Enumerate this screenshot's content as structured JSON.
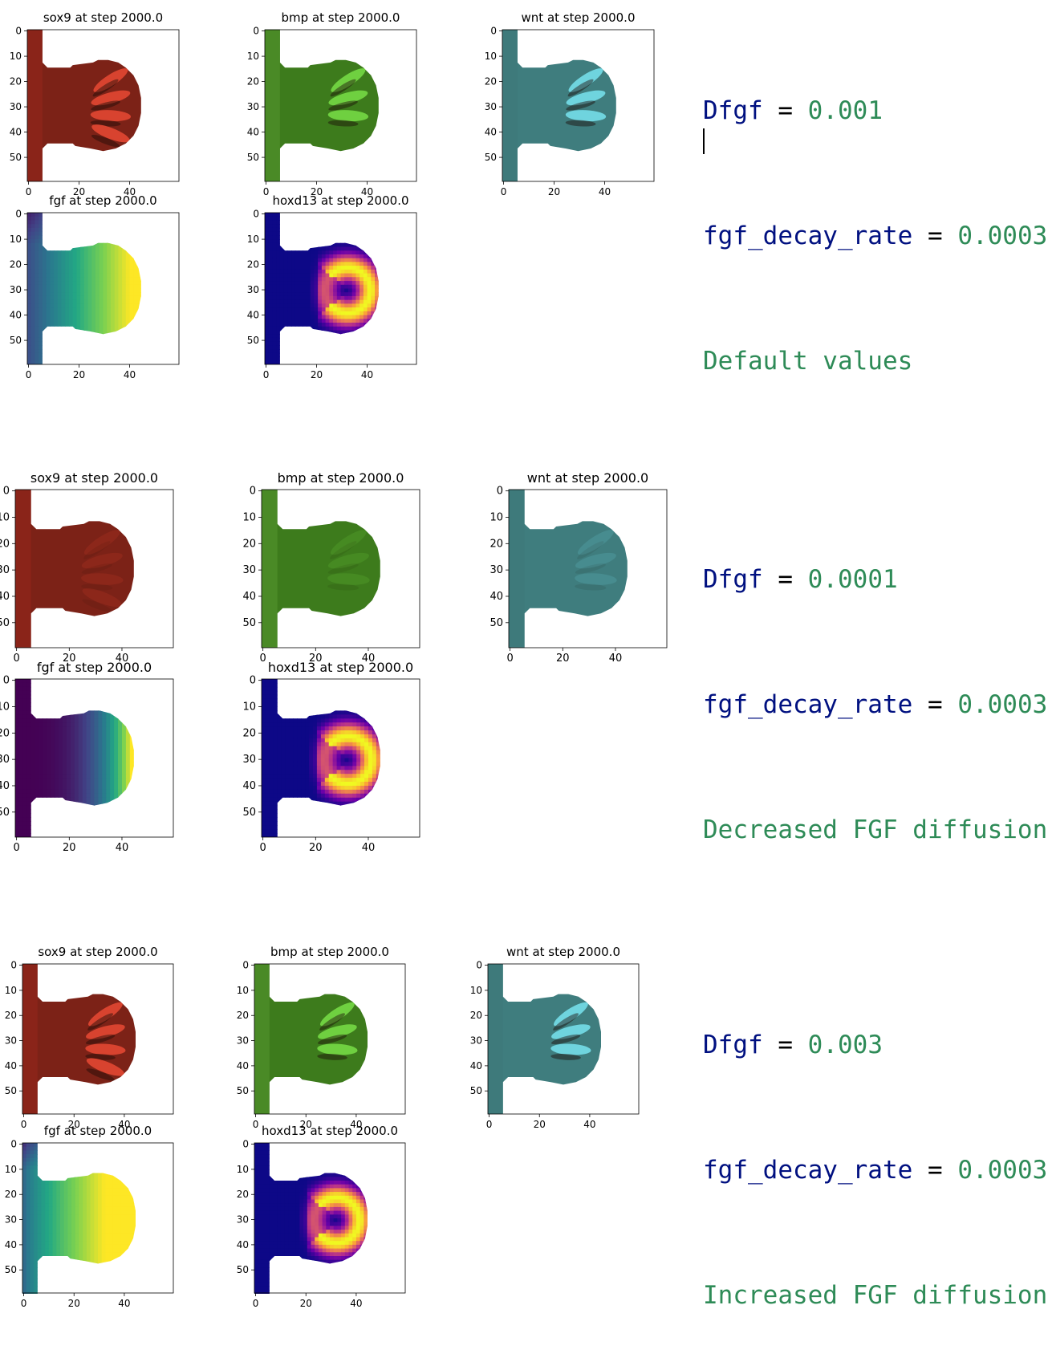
{
  "chart_data": [
    {
      "group": 1,
      "params": {
        "var1": "Dfgf",
        "val1": "0.001",
        "var2": "fgf_decay_rate",
        "val2": "0.0003",
        "op": "=",
        "comment": "Default values"
      },
      "panels": [
        {
          "title": "sox9 at step 2000.0",
          "species": "sox9",
          "colormap": "reds",
          "type": "heatmap",
          "xticks": [
            "0",
            "20",
            "40"
          ],
          "yticks": [
            "0",
            "10",
            "20",
            "30",
            "40",
            "50"
          ]
        },
        {
          "title": "bmp at step 2000.0",
          "species": "bmp",
          "colormap": "greens",
          "type": "heatmap",
          "xticks": [
            "0",
            "20",
            "40"
          ],
          "yticks": [
            "0",
            "10",
            "20",
            "30",
            "40",
            "50"
          ]
        },
        {
          "title": "wnt at step 2000.0",
          "species": "wnt",
          "colormap": "teal",
          "type": "heatmap",
          "xticks": [
            "0",
            "20",
            "40"
          ],
          "yticks": [
            "0",
            "10",
            "20",
            "30",
            "40",
            "50"
          ]
        },
        {
          "title": "fgf at step 2000.0",
          "species": "fgf",
          "colormap": "viridis",
          "type": "heatmap",
          "xticks": [
            "0",
            "20",
            "40"
          ],
          "yticks": [
            "0",
            "10",
            "20",
            "30",
            "40",
            "50"
          ]
        },
        {
          "title": "hoxd13 at step 2000.0",
          "species": "hoxd13",
          "colormap": "plasma",
          "type": "heatmap",
          "xticks": [
            "0",
            "20",
            "40"
          ],
          "yticks": [
            "0",
            "10",
            "20",
            "30",
            "40",
            "50"
          ]
        }
      ]
    },
    {
      "group": 2,
      "params": {
        "var1": "Dfgf",
        "val1": "0.0001",
        "var2": "fgf_decay_rate",
        "val2": "0.0003",
        "op": "=",
        "comment": "Decreased FGF diffusion"
      },
      "panels": [
        {
          "title": "sox9 at step 2000.0",
          "species": "sox9",
          "colormap": "reds",
          "type": "heatmap",
          "xticks": [
            "0",
            "20",
            "40"
          ],
          "yticks": [
            "0",
            "10",
            "20",
            "30",
            "40",
            "50"
          ]
        },
        {
          "title": "bmp at step 2000.0",
          "species": "bmp",
          "colormap": "greens",
          "type": "heatmap",
          "xticks": [
            "0",
            "20",
            "40"
          ],
          "yticks": [
            "0",
            "10",
            "20",
            "30",
            "40",
            "50"
          ]
        },
        {
          "title": "wnt at step 2000.0",
          "species": "wnt",
          "colormap": "teal",
          "type": "heatmap",
          "xticks": [
            "0",
            "20",
            "40"
          ],
          "yticks": [
            "0",
            "10",
            "20",
            "30",
            "40",
            "50"
          ]
        },
        {
          "title": "fgf at step 2000.0",
          "species": "fgf",
          "colormap": "viridis",
          "type": "heatmap",
          "xticks": [
            "0",
            "20",
            "40"
          ],
          "yticks": [
            "0",
            "10",
            "20",
            "30",
            "40",
            "50"
          ]
        },
        {
          "title": "hoxd13 at step 2000.0",
          "species": "hoxd13",
          "colormap": "plasma",
          "type": "heatmap",
          "xticks": [
            "0",
            "20",
            "40"
          ],
          "yticks": [
            "0",
            "10",
            "20",
            "30",
            "40",
            "50"
          ]
        }
      ]
    },
    {
      "group": 3,
      "params": {
        "var1": "Dfgf",
        "val1": "0.003",
        "var2": "fgf_decay_rate",
        "val2": "0.0003",
        "op": "=",
        "comment": "Increased FGF diffusion"
      },
      "panels": [
        {
          "title": "sox9 at step 2000.0",
          "species": "sox9",
          "colormap": "reds",
          "type": "heatmap",
          "xticks": [
            "0",
            "20",
            "40"
          ],
          "yticks": [
            "0",
            "10",
            "20",
            "30",
            "40",
            "50"
          ]
        },
        {
          "title": "bmp at step 2000.0",
          "species": "bmp",
          "colormap": "greens",
          "type": "heatmap",
          "xticks": [
            "0",
            "20",
            "40"
          ],
          "yticks": [
            "0",
            "10",
            "20",
            "30",
            "40",
            "50"
          ]
        },
        {
          "title": "wnt at step 2000.0",
          "species": "wnt",
          "colormap": "teal",
          "type": "heatmap",
          "xticks": [
            "0",
            "20",
            "40"
          ],
          "yticks": [
            "0",
            "10",
            "20",
            "30",
            "40",
            "50"
          ]
        },
        {
          "title": "fgf at step 2000.0",
          "species": "fgf",
          "colormap": "viridis",
          "type": "heatmap",
          "xticks": [
            "0",
            "20",
            "40"
          ],
          "yticks": [
            "0",
            "10",
            "20",
            "30",
            "40",
            "50"
          ]
        },
        {
          "title": "hoxd13 at step 2000.0",
          "species": "hoxd13",
          "colormap": "plasma",
          "type": "heatmap",
          "xticks": [
            "0",
            "20",
            "40"
          ],
          "yticks": [
            "0",
            "10",
            "20",
            "30",
            "40",
            "50"
          ]
        }
      ]
    }
  ],
  "colors": {
    "sox9_dark": "#8a2419",
    "sox9_body": "#7c2217",
    "sox9_hi": "#d8432f",
    "bmp_dark": "#3d7b1c",
    "bmp_hi": "#6fd040",
    "wnt_dark": "#3f7d7e",
    "wnt_hi": "#6fd4de",
    "plasma_bg": "#0d0887",
    "param_var": "#001080",
    "param_num": "#2e8b57"
  }
}
